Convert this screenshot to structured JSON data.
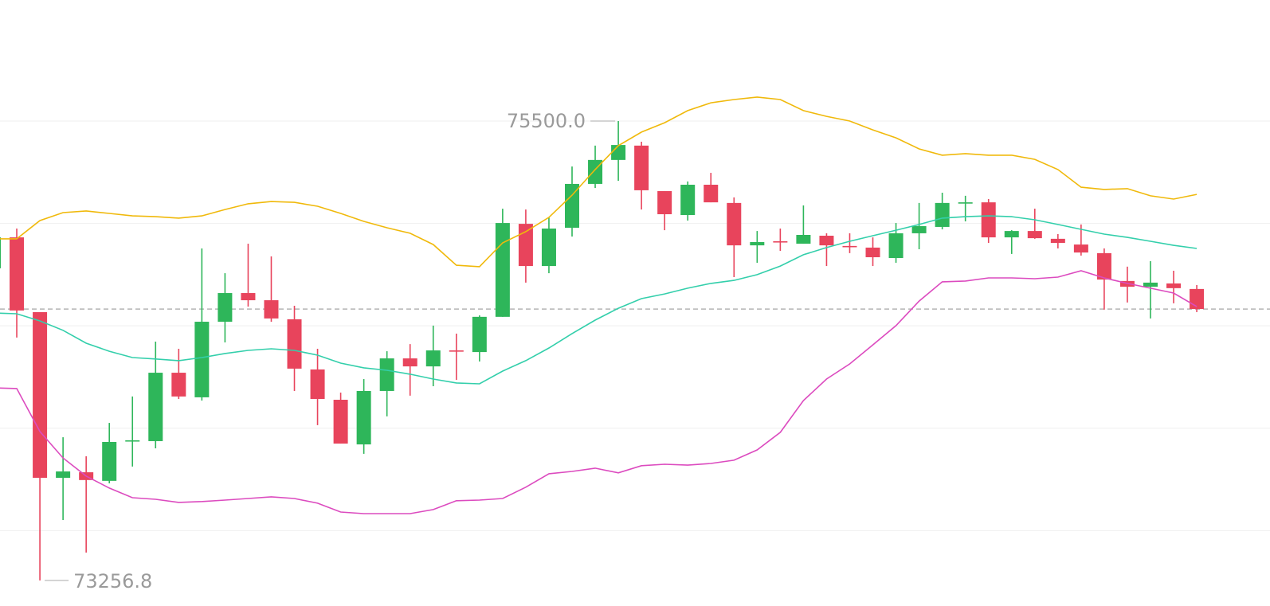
{
  "chart_data": {
    "type": "candlestick",
    "ylim": [
      73132,
      76091
    ],
    "yticks": [
      73500,
      74000,
      74500,
      75000,
      75500
    ],
    "grid": true,
    "up_color": "#2eb65a",
    "down_color": "#e8445c",
    "open": [
      74781,
      74932,
      74567,
      73758,
      73785,
      73743,
      73937,
      73937,
      74271,
      74151,
      74520,
      74660,
      74625,
      74532,
      74287,
      74139,
      73921,
      74182,
      74341,
      74302,
      74380,
      74372,
      74544,
      74998,
      74792,
      74979,
      75193,
      75310,
      75380,
      75158,
      75041,
      75189,
      75100,
      74893,
      74913,
      74901,
      74940,
      74890,
      74882,
      74831,
      74952,
      74983,
      75100,
      75103,
      74932,
      74963,
      74925,
      74897,
      74855,
      74719,
      74691,
      74707,
      74680
    ],
    "high": [
      74944,
      74975,
      74567,
      73956,
      73863,
      74026,
      74155,
      74423,
      74388,
      74878,
      74757,
      74901,
      74839,
      74598,
      74388,
      74174,
      74240,
      74376,
      74411,
      74501,
      74462,
      74551,
      75072,
      75068,
      75030,
      75278,
      75380,
      75500,
      75399,
      75158,
      75205,
      75247,
      75127,
      74963,
      74975,
      75088,
      74952,
      74952,
      74932,
      75002,
      75100,
      75150,
      75135,
      75119,
      74967,
      75072,
      74948,
      74995,
      74878,
      74789,
      74816,
      74769,
      74699
    ],
    "low": [
      74781,
      74443,
      73256.8,
      73552,
      73393,
      73731,
      73813,
      73902,
      74143,
      74135,
      74419,
      74594,
      74520,
      74182,
      74015,
      73925,
      73875,
      74058,
      74159,
      74205,
      74236,
      74326,
      74544,
      74711,
      74757,
      74936,
      75173,
      75208,
      75068,
      74967,
      75014,
      75103,
      74738,
      74808,
      74866,
      74901,
      74792,
      74855,
      74792,
      74808,
      74874,
      74971,
      75010,
      74905,
      74851,
      74925,
      74878,
      74843,
      74579,
      74614,
      74536,
      74610,
      74567
    ],
    "close": [
      74932,
      74575,
      73758,
      73789,
      73747,
      73933,
      73941,
      74271,
      74155,
      74520,
      74660,
      74625,
      74536,
      74291,
      74143,
      73925,
      74182,
      74341,
      74302,
      74380,
      74376,
      74544,
      75002,
      74792,
      74975,
      75193,
      75310,
      75383,
      75162,
      75045,
      75189,
      75103,
      74893,
      74909,
      74909,
      74944,
      74893,
      74886,
      74835,
      74952,
      74987,
      75100,
      75103,
      74932,
      74963,
      74928,
      74905,
      74858,
      74726,
      74691,
      74711,
      74684,
      74582
    ],
    "bands": [
      {
        "color": "#f0b90b",
        "values": [
          74925,
          74925,
          75014,
          75053,
          75061,
          75049,
          75037,
          75033,
          75026,
          75037,
          75068,
          75096,
          75107,
          75103,
          75084,
          75049,
          75010,
          74979,
          74952,
          74897,
          74796,
          74789,
          74905,
          74960,
          75030,
          75138,
          75263,
          75380,
          75446,
          75492,
          75551,
          75589,
          75605,
          75617,
          75605,
          75551,
          75523,
          75500,
          75457,
          75418,
          75364,
          75333,
          75341,
          75333,
          75333,
          75313,
          75263,
          75177,
          75166,
          75170,
          75135,
          75119,
          75142
        ]
      },
      {
        "color": "#33cfab",
        "values": [
          74563,
          74559,
          74524,
          74478,
          74415,
          74376,
          74345,
          74338,
          74330,
          74345,
          74365,
          74380,
          74388,
          74380,
          74357,
          74318,
          74295,
          74283,
          74264,
          74240,
          74221,
          74217,
          74279,
          74330,
          74392,
          74462,
          74528,
          74586,
          74633,
          74656,
          74684,
          74707,
          74722,
          74750,
          74792,
          74847,
          74882,
          74913,
          74940,
          74967,
          74995,
          75026,
          75033,
          75037,
          75033,
          75018,
          74995,
          74971,
          74948,
          74932,
          74913,
          74893,
          74878
        ]
      },
      {
        "color": "#dc4bbf",
        "values": [
          74197,
          74194,
          73984,
          73855,
          73766,
          73708,
          73661,
          73653,
          73638,
          73642,
          73649,
          73657,
          73665,
          73657,
          73634,
          73591,
          73583,
          73583,
          73583,
          73603,
          73646,
          73649,
          73657,
          73712,
          73778,
          73789,
          73805,
          73782,
          73817,
          73824,
          73820,
          73828,
          73844,
          73894,
          73980,
          74135,
          74240,
          74314,
          74407,
          74501,
          74621,
          74715,
          74719,
          74734,
          74734,
          74730,
          74738,
          74769,
          74734,
          74707,
          74684,
          74660,
          74594
        ]
      }
    ],
    "high_marker": {
      "value": 75500,
      "label": "75500.0"
    },
    "low_marker": {
      "value": 73256.8,
      "label": "73256.8"
    }
  }
}
